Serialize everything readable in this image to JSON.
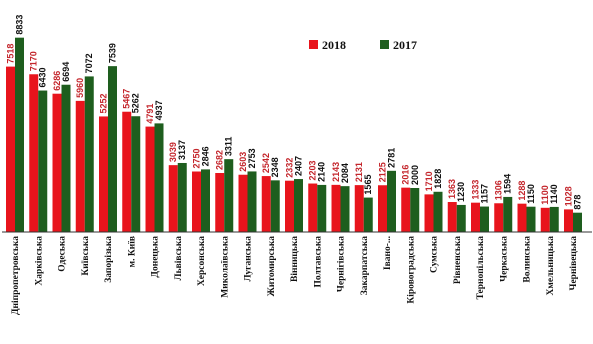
{
  "chart_data": {
    "type": "bar",
    "title": "",
    "xlabel": "",
    "ylabel": "",
    "categories": [
      "Дніпропетровська",
      "Харківська",
      "Одеська",
      "Київська",
      "Запорізька",
      "м. Київ",
      "Донецька",
      "Львівська",
      "Херсонська",
      "Миколаївська",
      "Луганська",
      "Житомирська",
      "Вінницька",
      "Полтавська",
      "Чернігівська",
      "Закарпатська",
      "Івано-...",
      "Кіровоградська",
      "Сумська",
      "Рівненська",
      "Тернопільська",
      "Черкаська",
      "Волинська",
      "Хмельницька",
      "Чернівецька"
    ],
    "series": [
      {
        "name": "2018",
        "color": "#e8141c",
        "values": [
          7518,
          7170,
          6286,
          5960,
          5252,
          5467,
          4791,
          3039,
          2750,
          2682,
          2603,
          2542,
          2332,
          2203,
          2143,
          2131,
          2125,
          2016,
          1710,
          1363,
          1333,
          1306,
          1288,
          1100,
          1028
        ]
      },
      {
        "name": "2017",
        "color": "#1e5e1e",
        "values": [
          8833,
          6430,
          6694,
          7072,
          7539,
          5262,
          4937,
          3137,
          2846,
          3311,
          2753,
          2348,
          2407,
          2140,
          2084,
          1565,
          2781,
          2000,
          1828,
          1230,
          1157,
          1594,
          1150,
          1140,
          878
        ]
      }
    ],
    "ylim": [
      0,
      9000
    ],
    "grid": false,
    "legend_position": "top-right",
    "label_colors": {
      "2018": "#c4262c",
      "2017": "#111111"
    }
  }
}
